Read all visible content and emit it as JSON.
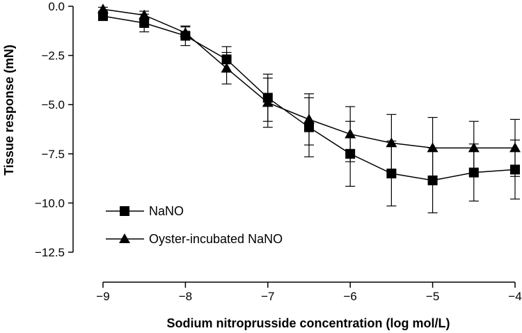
{
  "chart_data": {
    "type": "line",
    "title": "",
    "xlabel": "Sodium nitroprusside concentration (log mol/L)",
    "ylabel": "Tissue response (mN)",
    "xlim": [
      -9,
      -4
    ],
    "ylim": [
      -12.5,
      0.0
    ],
    "x_ticks": [
      -9,
      -8,
      -7,
      -6,
      -5,
      -4
    ],
    "x_tick_labels": [
      "−9",
      "−8",
      "−7",
      "−6",
      "−5",
      "−4"
    ],
    "y_ticks": [
      0.0,
      -2.5,
      -5.0,
      -7.5,
      -10.0,
      -12.5
    ],
    "y_tick_labels": [
      "0.0",
      "−2.5",
      "−5.0",
      "−7.5",
      "−10.0",
      "−12.5"
    ],
    "grid": false,
    "legend_position": "bottom-left",
    "x": [
      -9,
      -8.5,
      -8,
      -7.5,
      -7,
      -6.5,
      -6,
      -5.5,
      -5,
      -4.5,
      -4
    ],
    "series": [
      {
        "name": "NaNO",
        "marker": "square",
        "values": [
          -0.5,
          -0.85,
          -1.5,
          -2.7,
          -4.65,
          -6.15,
          -7.5,
          -8.5,
          -8.85,
          -8.45,
          -8.3
        ],
        "error": [
          0.1,
          0.45,
          0.5,
          0.65,
          1.2,
          1.5,
          1.65,
          1.65,
          1.65,
          1.45,
          1.5
        ]
      },
      {
        "name": "Oyster-incubated NaNO",
        "marker": "triangle",
        "values": [
          -0.15,
          -0.45,
          -1.35,
          -3.15,
          -4.9,
          -5.75,
          -6.5,
          -6.95,
          -7.2,
          -7.2,
          -7.2
        ],
        "error": [
          0.1,
          0.2,
          0.3,
          0.8,
          1.25,
          1.3,
          1.4,
          1.45,
          1.55,
          1.35,
          1.45
        ]
      }
    ],
    "colors": {
      "line": "#000000",
      "marker": "#000000",
      "background": "#ffffff"
    }
  }
}
